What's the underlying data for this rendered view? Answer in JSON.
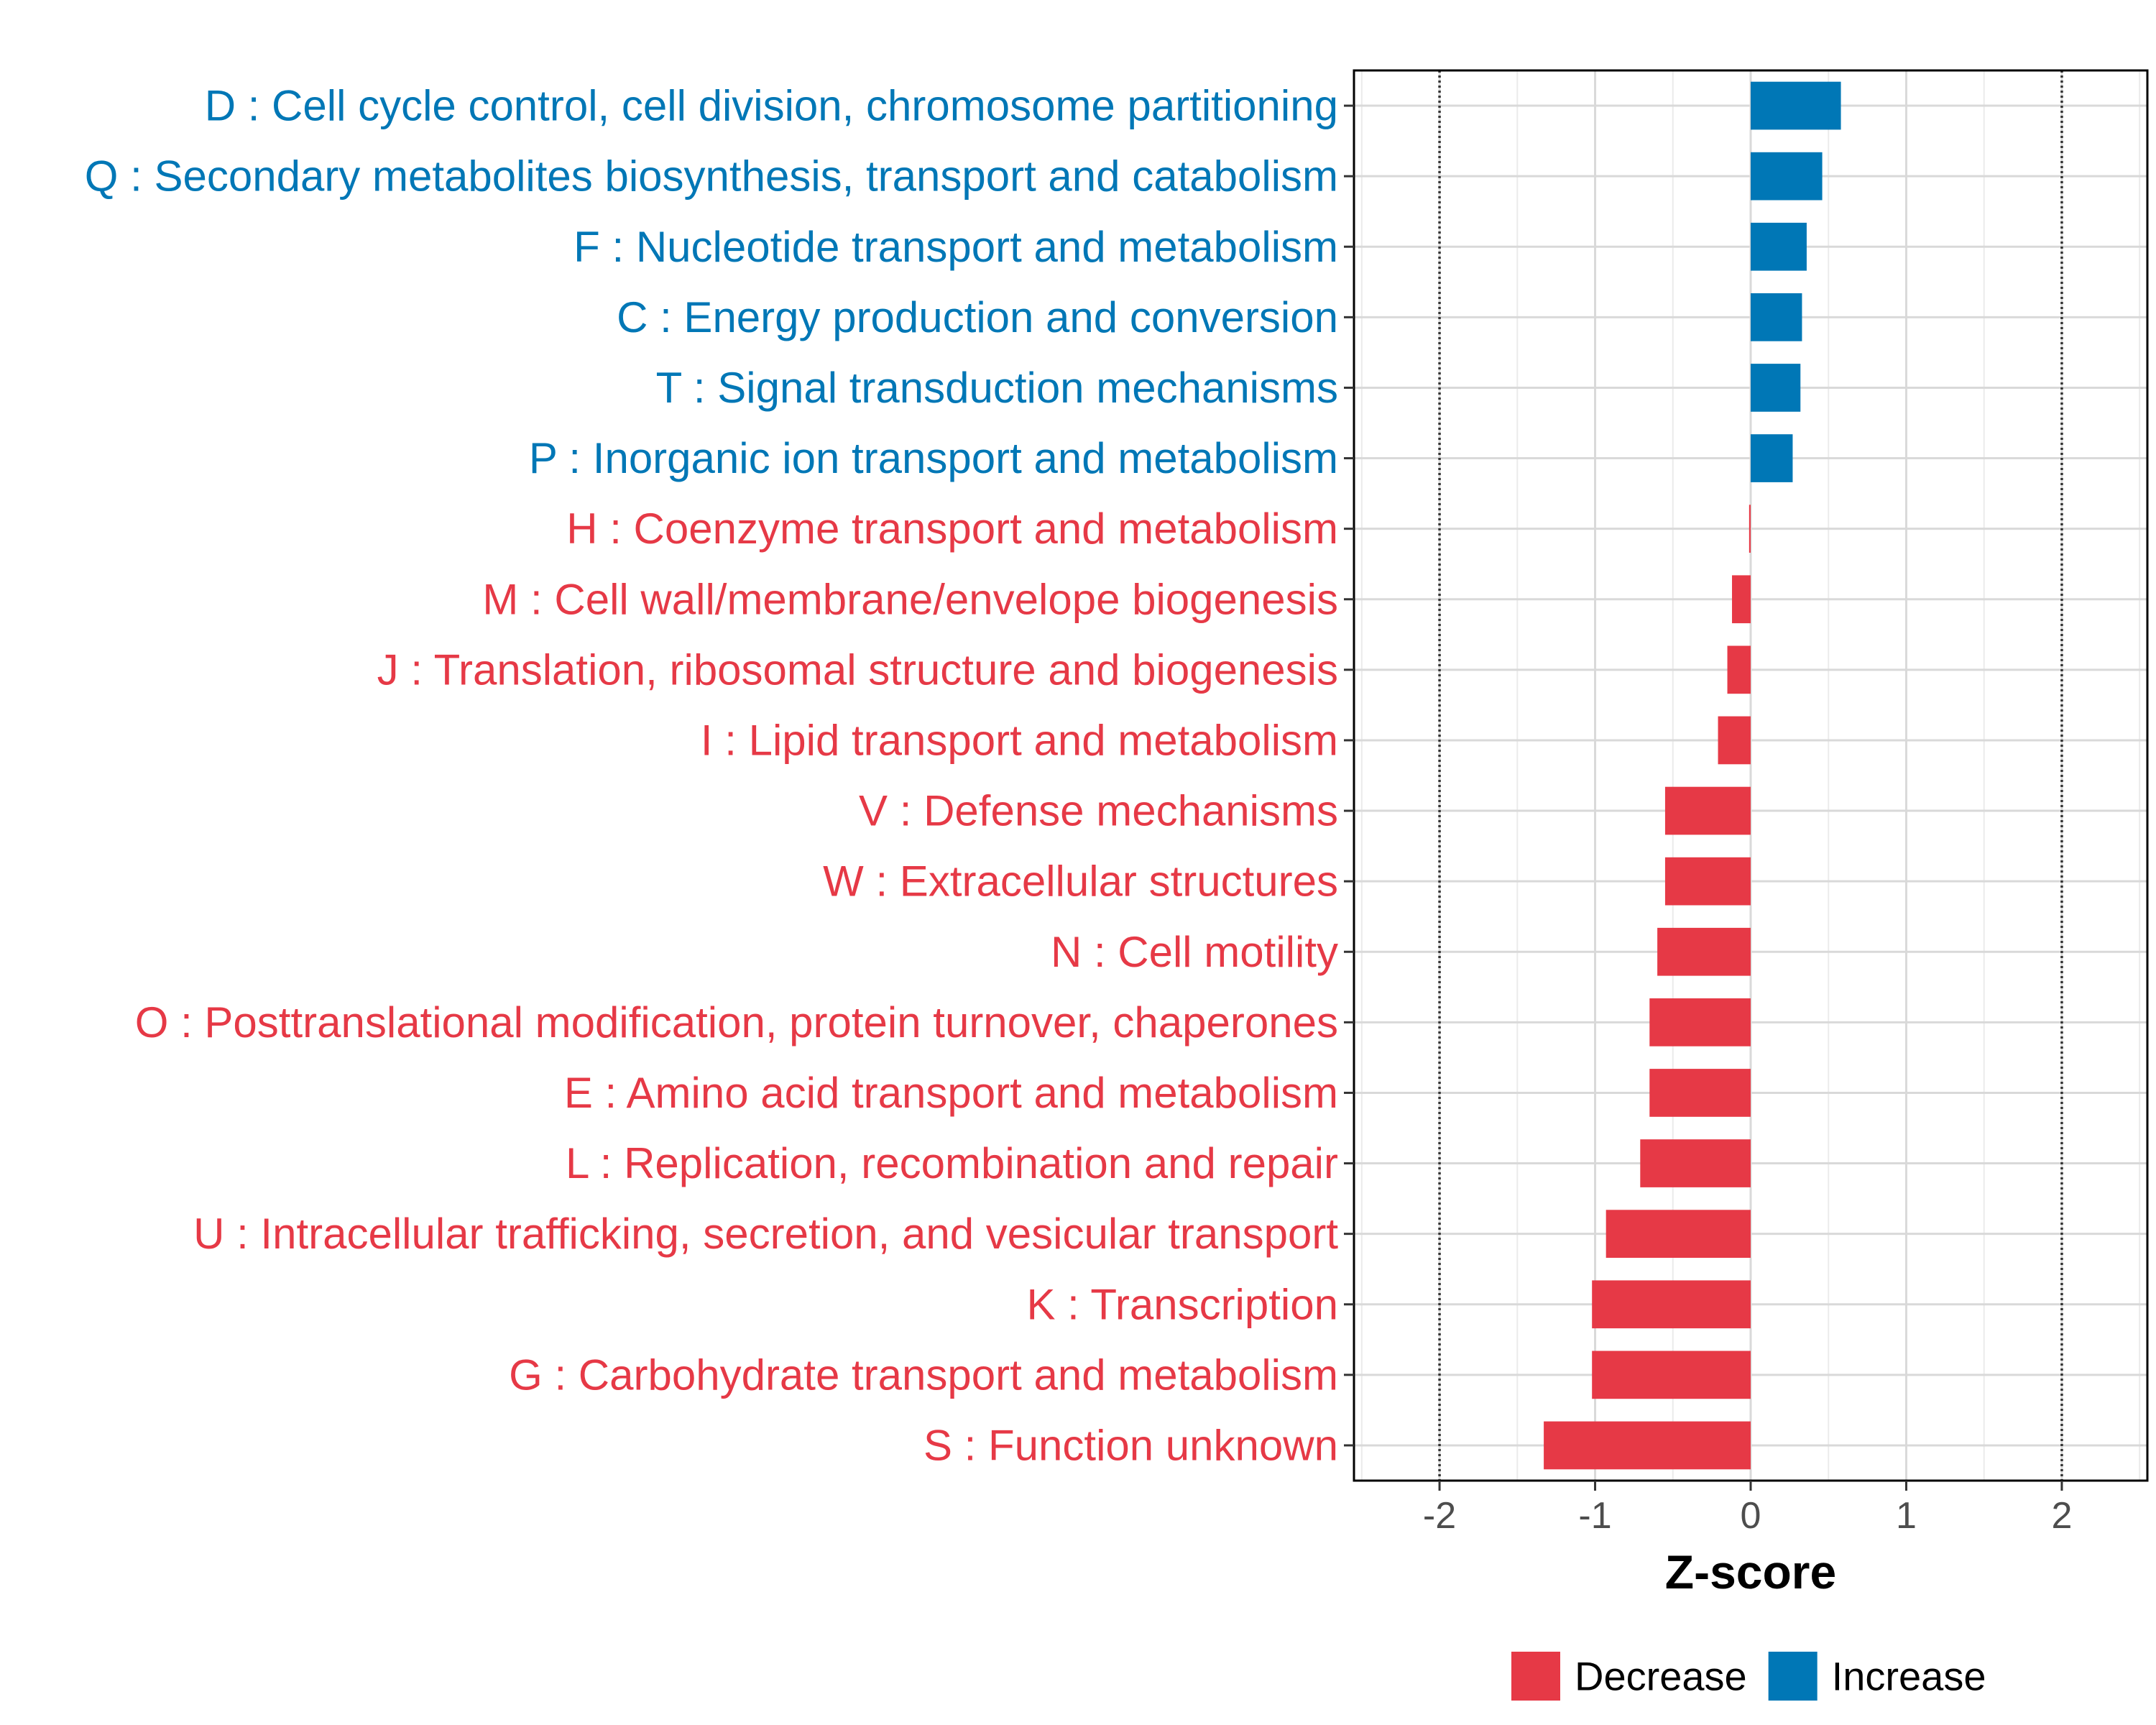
{
  "chart_data": {
    "type": "bar",
    "orientation": "horizontal",
    "xlabel": "Z-score",
    "ylabel": "",
    "xlim": [
      -2.55,
      2.55
    ],
    "xticks": [
      -2,
      -1,
      0,
      1,
      2
    ],
    "xtick_labels": [
      "-2",
      "-1",
      "0",
      "1",
      "2"
    ],
    "reference_lines": [
      -2,
      2
    ],
    "grid": true,
    "legend_position": "bottom",
    "colors": {
      "Decrease": "#e63946",
      "Increase": "#0077b6"
    },
    "categories": [
      "D : Cell cycle control, cell division, chromosome partitioning",
      "Q : Secondary metabolites biosynthesis, transport and catabolism",
      "F : Nucleotide transport and metabolism",
      "C : Energy production and conversion",
      "T : Signal transduction mechanisms",
      "P : Inorganic ion transport and metabolism",
      "H : Coenzyme transport and metabolism",
      "M : Cell wall/membrane/envelope biogenesis",
      "J : Translation, ribosomal structure and biogenesis",
      "I : Lipid transport and metabolism",
      "V : Defense mechanisms",
      "W : Extracellular structures",
      "N : Cell motility",
      "O : Posttranslational modification, protein turnover, chaperones",
      "E : Amino acid transport and metabolism",
      "L : Replication, recombination and repair",
      "U : Intracellular trafficking, secretion, and vesicular transport",
      "K : Transcription",
      "G : Carbohydrate transport and metabolism",
      "S : Function unknown"
    ],
    "values": [
      0.58,
      0.46,
      0.36,
      0.33,
      0.32,
      0.27,
      -0.01,
      -0.12,
      -0.15,
      -0.21,
      -0.55,
      -0.55,
      -0.6,
      -0.65,
      -0.65,
      -0.71,
      -0.93,
      -1.02,
      -1.02,
      -1.33
    ],
    "groups": [
      "Increase",
      "Increase",
      "Increase",
      "Increase",
      "Increase",
      "Increase",
      "Decrease",
      "Decrease",
      "Decrease",
      "Decrease",
      "Decrease",
      "Decrease",
      "Decrease",
      "Decrease",
      "Decrease",
      "Decrease",
      "Decrease",
      "Decrease",
      "Decrease",
      "Decrease"
    ],
    "legend": [
      {
        "label": "Decrease",
        "group": "Decrease"
      },
      {
        "label": "Increase",
        "group": "Increase"
      }
    ]
  }
}
